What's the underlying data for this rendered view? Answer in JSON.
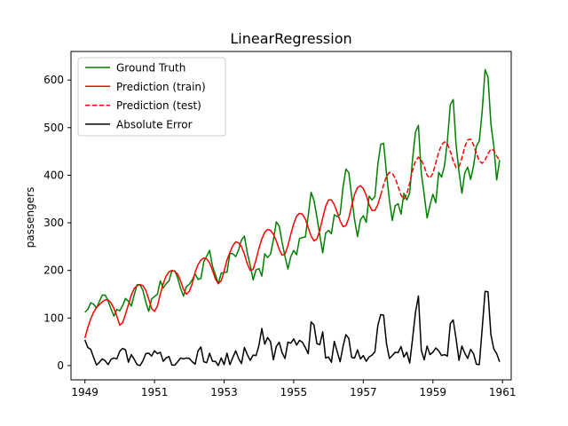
{
  "chart_data": {
    "type": "line",
    "title": "LinearRegression",
    "xlabel": "",
    "ylabel": "passengers",
    "xlim": [
      1948.6,
      1961.25
    ],
    "ylim": [
      -30,
      660
    ],
    "x_ticks": [
      1949,
      1951,
      1953,
      1955,
      1957,
      1959,
      1961
    ],
    "y_ticks": [
      0,
      100,
      200,
      300,
      400,
      500,
      600
    ],
    "grid": false,
    "legend_position": "upper-left",
    "x_start": 1949,
    "x_step": 0.08333333,
    "series": [
      {
        "name": "Ground Truth",
        "color": "#008000",
        "style": "solid",
        "start_index": 0,
        "values": [
          112,
          118,
          132,
          129,
          121,
          135,
          148,
          148,
          136,
          119,
          104,
          118,
          115,
          126,
          141,
          135,
          125,
          149,
          170,
          170,
          158,
          133,
          114,
          140,
          145,
          150,
          178,
          163,
          172,
          178,
          199,
          199,
          184,
          162,
          146,
          166,
          171,
          180,
          193,
          181,
          183,
          218,
          230,
          242,
          209,
          191,
          172,
          194,
          196,
          196,
          236,
          235,
          229,
          243,
          264,
          272,
          237,
          211,
          180,
          201,
          204,
          188,
          235,
          227,
          234,
          264,
          302,
          293,
          259,
          229,
          203,
          229,
          242,
          233,
          267,
          269,
          270,
          315,
          364,
          347,
          312,
          274,
          237,
          278,
          284,
          277,
          317,
          313,
          318,
          374,
          413,
          405,
          355,
          306,
          271,
          306,
          315,
          301,
          356,
          348,
          355,
          422,
          465,
          467,
          404,
          347,
          305,
          336,
          340,
          318,
          362,
          348,
          363,
          435,
          491,
          505,
          404,
          359,
          310,
          337,
          360,
          342,
          406,
          396,
          420,
          472,
          548,
          559,
          463,
          407,
          362,
          405,
          417,
          391,
          419,
          461,
          472,
          535,
          622,
          606,
          508,
          461,
          390,
          432
        ]
      },
      {
        "name": "Prediction (train)",
        "color": "#ff0000",
        "style": "solid",
        "start_index": 0,
        "values": [
          58,
          80,
          98,
          112,
          122,
          128,
          134,
          138,
          138,
          132,
          120,
          104,
          85,
          90,
          108,
          128,
          148,
          162,
          168,
          170,
          168,
          158,
          140,
          120,
          114,
          125,
          150,
          172,
          188,
          197,
          200,
          198,
          192,
          178,
          160,
          150,
          156,
          172,
          196,
          212,
          222,
          226,
          224,
          216,
          200,
          182,
          172,
          178,
          198,
          222,
          238,
          252,
          260,
          258,
          250,
          234,
          214,
          200,
          202,
          222,
          246,
          266,
          280,
          286,
          284,
          276,
          262,
          244,
          232,
          234,
          252,
          276,
          298,
          314,
          320,
          318,
          308,
          290,
          272,
          262,
          266,
          284,
          310,
          334,
          348,
          348,
          338,
          322,
          304,
          292,
          294,
          310,
          336,
          360,
          374,
          378,
          372,
          358,
          338,
          326,
          326,
          338,
          358
        ]
      },
      {
        "name": "Prediction (test)",
        "color": "#ff0000",
        "style": "dashed",
        "start_index": 102,
        "values": [
          358,
          380,
          398,
          406,
          404,
          394,
          376,
          358,
          350,
          360,
          384,
          410,
          430,
          438,
          432,
          418,
          400,
          394,
          404,
          426,
          448,
          464,
          470,
          466,
          450,
          430,
          416,
          418,
          436,
          460,
          474,
          476,
          464,
          446,
          430,
          425,
          432,
          445,
          455,
          452,
          440,
          432
        ]
      },
      {
        "name": "Absolute Error",
        "color": "#000000",
        "style": "solid",
        "start_index": 0,
        "values": [
          54,
          38,
          34,
          17,
          1,
          7,
          14,
          10,
          2,
          13,
          16,
          14,
          30,
          36,
          33,
          7,
          23,
          13,
          2,
          0,
          10,
          25,
          26,
          20,
          31,
          25,
          28,
          9,
          16,
          19,
          1,
          1,
          8,
          16,
          14,
          16,
          15,
          8,
          3,
          31,
          39,
          8,
          6,
          26,
          9,
          9,
          0,
          16,
          2,
          26,
          2,
          17,
          31,
          15,
          4,
          38,
          23,
          11,
          22,
          21,
          42,
          78,
          45,
          59,
          50,
          12,
          40,
          49,
          27,
          15,
          49,
          47,
          56,
          43,
          53,
          49,
          38,
          25,
          92,
          85,
          46,
          44,
          71,
          16,
          18,
          7,
          51,
          29,
          8,
          40,
          65,
          57,
          17,
          16,
          33,
          14,
          21,
          9,
          18,
          22,
          29,
          84,
          107,
          106,
          46,
          15,
          21,
          28,
          27,
          40,
          18,
          28,
          5,
          57,
          112,
          146,
          32,
          12,
          41,
          23,
          28,
          37,
          31,
          21,
          23,
          20,
          88,
          96,
          56,
          11,
          41,
          26,
          15,
          34,
          25,
          3,
          2,
          78,
          156,
          155,
          65,
          35,
          25,
          8
        ]
      }
    ]
  }
}
